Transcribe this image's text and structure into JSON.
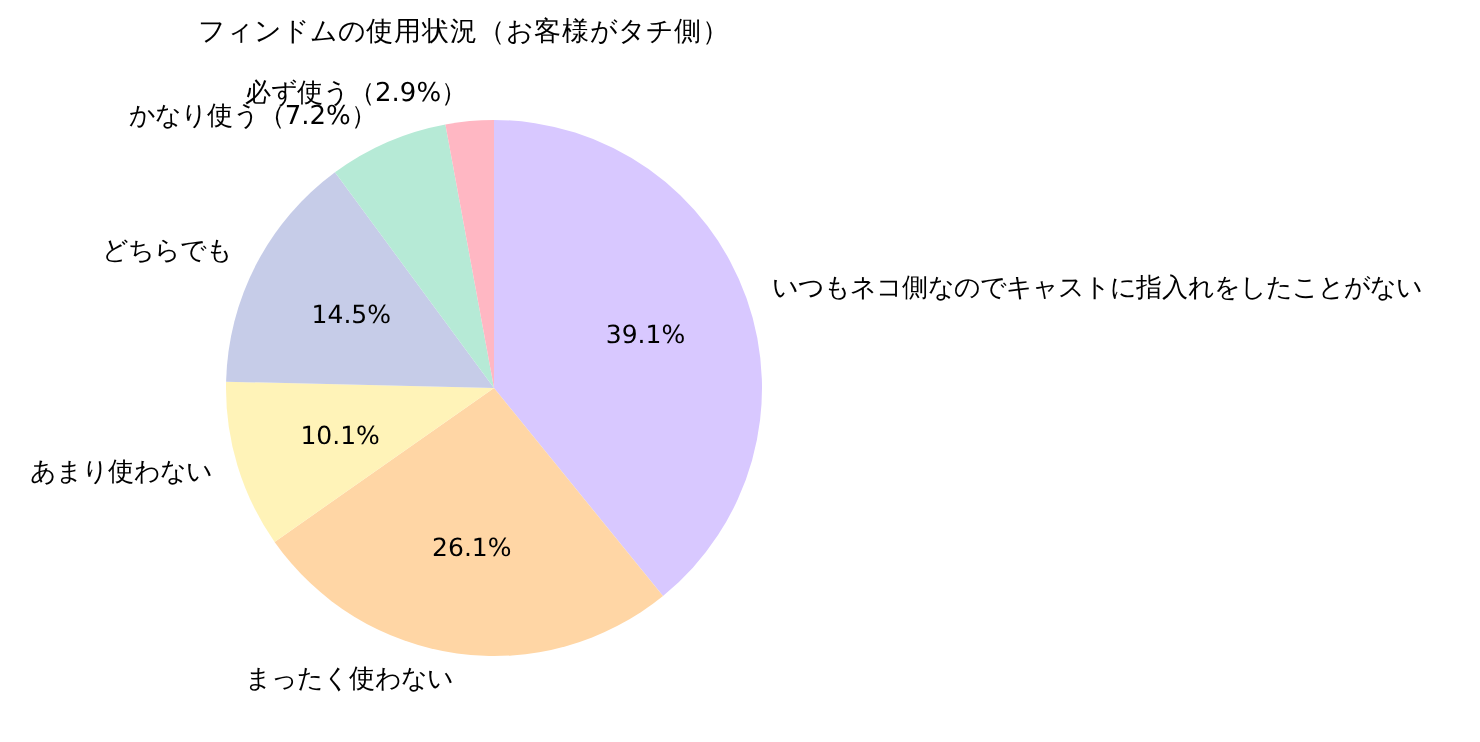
{
  "chart_data": {
    "type": "pie",
    "title": "フィンドムの使用状況（お客様がタチ側）",
    "categories": [
      "いつもネコ側なのでキャストに指入れをしたことがない",
      "まったく使わない",
      "あまり使わない",
      "どちらでも",
      "かなり使う（7.2%）",
      "必ず使う（2.9%）"
    ],
    "values": [
      39.1,
      26.1,
      10.1,
      14.5,
      7.2,
      2.9
    ],
    "colors": [
      "#d8c8ff",
      "#ffd6a5",
      "#fff3b8",
      "#c6cce8",
      "#b6ead6",
      "#ffb7c3"
    ],
    "value_labels": [
      "39.1%",
      "26.1%",
      "10.1%",
      "14.5%",
      null,
      null
    ]
  }
}
